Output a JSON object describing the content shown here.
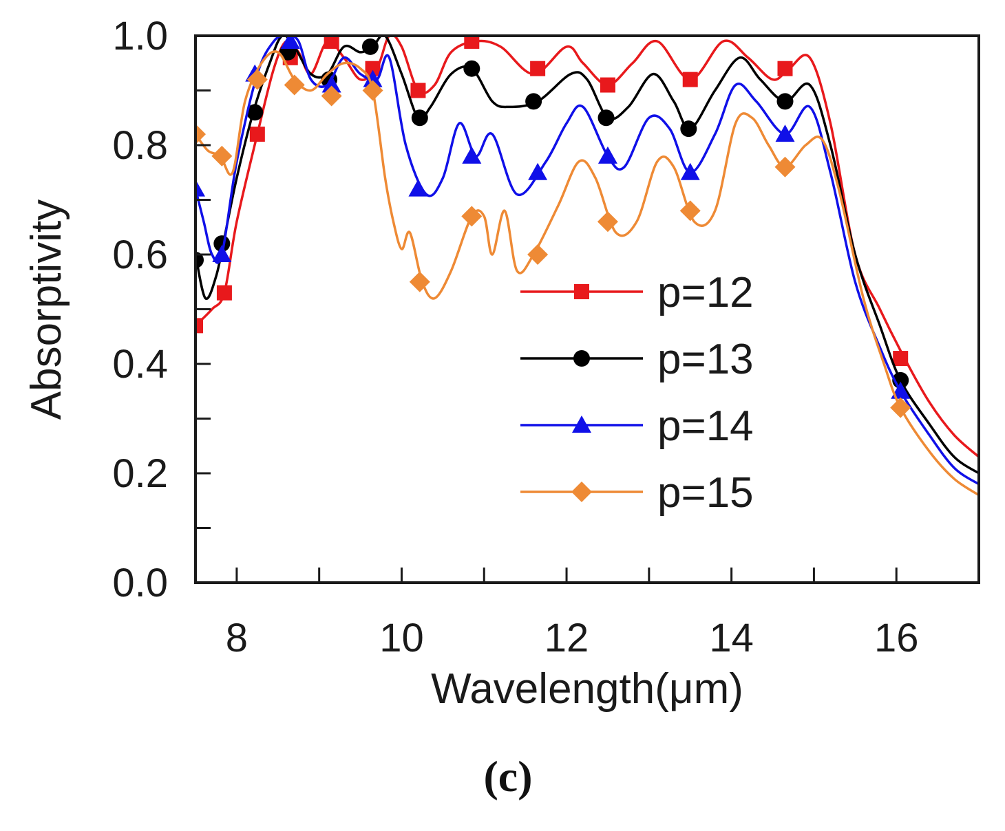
{
  "chart_data": {
    "type": "line",
    "xlabel": "Wavelength(μm)",
    "ylabel": "Absorptivity",
    "xlim": [
      7.5,
      17.0
    ],
    "ylim": [
      0.0,
      1.0
    ],
    "xticks": [
      8,
      10,
      12,
      14,
      16
    ],
    "yticks": [
      0.0,
      0.2,
      0.4,
      0.6,
      0.8,
      1.0
    ],
    "ytick_labels": [
      "0.0",
      "0.2",
      "0.4",
      "0.6",
      "0.8",
      "1.0"
    ],
    "legend_position": "center-right",
    "panel_label": "(c)",
    "series": [
      {
        "name": "p=12",
        "color": "#e8191c",
        "marker": "square",
        "x": [
          7.5,
          7.7,
          7.85,
          8.0,
          8.25,
          8.45,
          8.6,
          8.75,
          8.9,
          9.1,
          9.3,
          9.5,
          9.7,
          9.85,
          10.0,
          10.2,
          10.4,
          10.6,
          10.9,
          11.2,
          11.6,
          12.0,
          12.2,
          12.5,
          12.8,
          13.1,
          13.5,
          13.9,
          14.2,
          14.5,
          14.7,
          14.95,
          15.2,
          15.5,
          15.8,
          16.1,
          16.4,
          16.7,
          17.0
        ],
        "y": [
          0.47,
          0.5,
          0.53,
          0.66,
          0.82,
          0.94,
          0.99,
          0.97,
          0.93,
          0.99,
          0.96,
          0.92,
          0.94,
          1.0,
          0.98,
          0.9,
          0.91,
          0.97,
          0.99,
          0.98,
          0.93,
          0.98,
          0.95,
          0.91,
          0.95,
          0.99,
          0.92,
          0.99,
          0.96,
          0.92,
          0.94,
          0.96,
          0.84,
          0.6,
          0.5,
          0.41,
          0.33,
          0.27,
          0.23
        ],
        "marker_x": [
          7.5,
          7.85,
          8.25,
          8.65,
          9.15,
          9.65,
          10.2,
          10.85,
          11.65,
          12.5,
          13.5,
          14.65,
          16.05
        ],
        "marker_y": [
          0.47,
          0.53,
          0.82,
          0.96,
          0.99,
          0.94,
          0.9,
          0.99,
          0.94,
          0.91,
          0.92,
          0.94,
          0.41
        ]
      },
      {
        "name": "p=13",
        "color": "#000000",
        "marker": "circle",
        "x": [
          7.5,
          7.62,
          7.75,
          7.85,
          8.0,
          8.2,
          8.4,
          8.55,
          8.7,
          8.9,
          9.1,
          9.3,
          9.5,
          9.65,
          9.8,
          10.0,
          10.2,
          10.35,
          10.6,
          10.85,
          11.1,
          11.3,
          11.65,
          12.05,
          12.25,
          12.5,
          12.75,
          13.05,
          13.3,
          13.5,
          13.8,
          14.1,
          14.35,
          14.65,
          14.95,
          15.2,
          15.5,
          15.8,
          16.05,
          16.4,
          16.7,
          17.0
        ],
        "y": [
          0.6,
          0.52,
          0.56,
          0.63,
          0.74,
          0.86,
          0.95,
          1.0,
          0.98,
          0.93,
          0.93,
          0.98,
          0.97,
          0.98,
          1.0,
          0.93,
          0.85,
          0.87,
          0.93,
          0.94,
          0.88,
          0.87,
          0.88,
          0.93,
          0.92,
          0.85,
          0.87,
          0.93,
          0.88,
          0.83,
          0.9,
          0.96,
          0.92,
          0.88,
          0.91,
          0.8,
          0.6,
          0.47,
          0.37,
          0.29,
          0.23,
          0.2
        ],
        "marker_x": [
          7.5,
          7.82,
          8.22,
          8.62,
          9.12,
          9.62,
          10.22,
          10.85,
          11.6,
          12.48,
          13.48,
          14.65,
          16.05
        ],
        "marker_y": [
          0.59,
          0.62,
          0.86,
          0.97,
          0.92,
          0.98,
          0.85,
          0.94,
          0.88,
          0.85,
          0.83,
          0.88,
          0.37
        ]
      },
      {
        "name": "p=14",
        "color": "#1010e8",
        "marker": "triangle",
        "x": [
          7.5,
          7.6,
          7.7,
          7.82,
          8.0,
          8.25,
          8.45,
          8.6,
          8.75,
          8.9,
          9.1,
          9.3,
          9.5,
          9.7,
          9.85,
          10.05,
          10.3,
          10.5,
          10.7,
          10.9,
          11.1,
          11.4,
          11.75,
          12.0,
          12.2,
          12.5,
          12.7,
          13.0,
          13.25,
          13.5,
          13.8,
          14.05,
          14.3,
          14.65,
          14.95,
          15.2,
          15.5,
          15.8,
          16.05,
          16.4,
          16.7,
          17.0
        ],
        "y": [
          0.72,
          0.66,
          0.6,
          0.6,
          0.77,
          0.93,
          0.99,
          1.0,
          0.99,
          0.92,
          0.91,
          0.96,
          0.93,
          0.92,
          0.96,
          0.8,
          0.71,
          0.74,
          0.84,
          0.78,
          0.82,
          0.71,
          0.77,
          0.84,
          0.87,
          0.78,
          0.76,
          0.85,
          0.83,
          0.75,
          0.82,
          0.91,
          0.88,
          0.82,
          0.87,
          0.75,
          0.55,
          0.43,
          0.35,
          0.27,
          0.21,
          0.18
        ],
        "marker_x": [
          7.5,
          7.82,
          8.22,
          8.65,
          9.15,
          9.65,
          10.2,
          10.85,
          11.65,
          12.5,
          13.5,
          14.65,
          16.05
        ],
        "marker_y": [
          0.72,
          0.6,
          0.93,
          0.99,
          0.91,
          0.92,
          0.72,
          0.78,
          0.75,
          0.78,
          0.75,
          0.82,
          0.35
        ]
      },
      {
        "name": "p=15",
        "color": "#ee8a35",
        "marker": "diamond",
        "x": [
          7.5,
          7.65,
          7.8,
          7.95,
          8.1,
          8.3,
          8.5,
          8.7,
          8.9,
          9.1,
          9.3,
          9.5,
          9.65,
          9.8,
          9.9,
          10.0,
          10.1,
          10.25,
          10.4,
          10.6,
          10.85,
          11.0,
          11.1,
          11.25,
          11.4,
          11.6,
          11.9,
          12.15,
          12.35,
          12.6,
          12.85,
          13.1,
          13.3,
          13.55,
          13.8,
          14.05,
          14.25,
          14.45,
          14.65,
          14.9,
          15.1,
          15.3,
          15.6,
          15.85,
          16.05,
          16.4,
          16.7,
          17.0
        ],
        "y": [
          0.82,
          0.79,
          0.78,
          0.75,
          0.88,
          0.95,
          0.97,
          0.92,
          0.9,
          0.93,
          0.95,
          0.94,
          0.9,
          0.74,
          0.66,
          0.61,
          0.64,
          0.55,
          0.52,
          0.57,
          0.67,
          0.67,
          0.6,
          0.68,
          0.57,
          0.6,
          0.69,
          0.77,
          0.74,
          0.64,
          0.66,
          0.77,
          0.76,
          0.66,
          0.68,
          0.84,
          0.85,
          0.8,
          0.76,
          0.8,
          0.81,
          0.72,
          0.52,
          0.4,
          0.32,
          0.24,
          0.19,
          0.16
        ],
        "marker_x": [
          7.5,
          7.82,
          8.25,
          8.7,
          9.15,
          9.65,
          10.22,
          10.85,
          11.65,
          12.5,
          13.5,
          14.65,
          16.05
        ],
        "marker_y": [
          0.82,
          0.78,
          0.92,
          0.91,
          0.89,
          0.9,
          0.55,
          0.67,
          0.6,
          0.66,
          0.68,
          0.76,
          0.32
        ]
      }
    ]
  }
}
